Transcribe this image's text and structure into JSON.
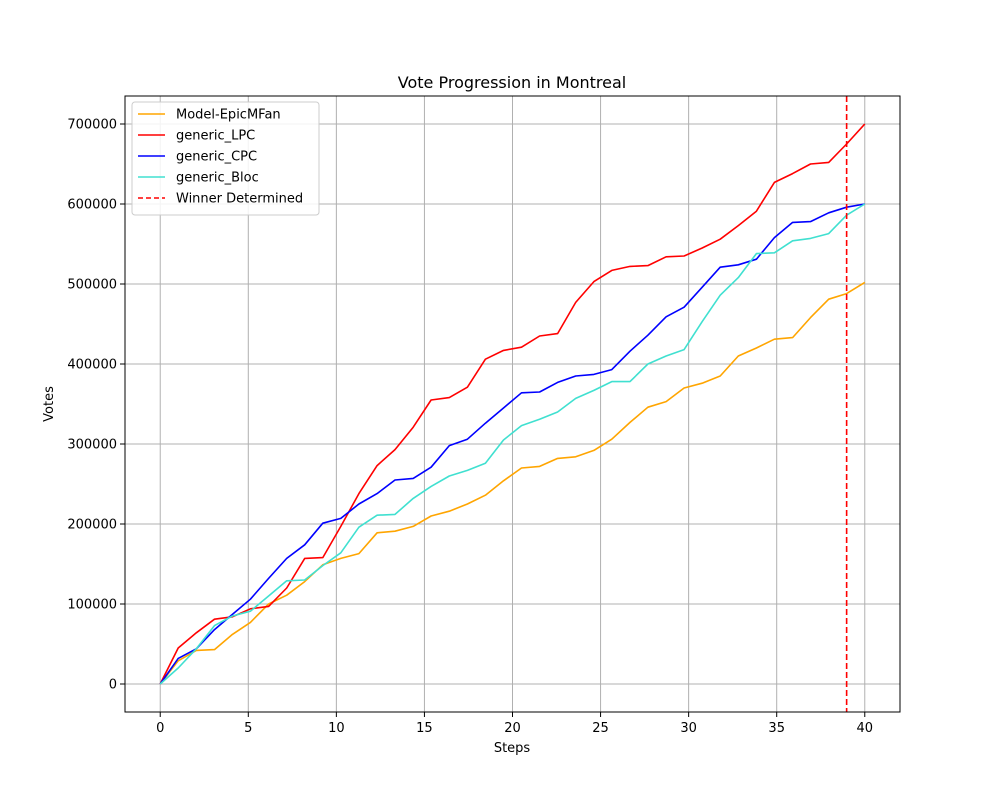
{
  "chart_data": {
    "type": "line",
    "title": "Vote Progression in Montreal",
    "xlabel": "Steps",
    "ylabel": "Votes",
    "xlim": [
      -2,
      42
    ],
    "ylim": [
      -35000,
      735000
    ],
    "xticks": [
      0,
      5,
      10,
      15,
      20,
      25,
      30,
      35,
      40
    ],
    "yticks": [
      0,
      100000,
      200000,
      300000,
      400000,
      500000,
      600000,
      700000
    ],
    "grid": true,
    "legend_position": "top-left",
    "x": [
      0,
      1.02,
      2.05,
      3.08,
      4.1,
      5.12,
      6.15,
      7.18,
      8.2,
      9.23,
      10.25,
      11.28,
      12.31,
      13.33,
      14.36,
      15.38,
      16.41,
      17.44,
      18.46,
      19.49,
      20.51,
      21.54,
      22.56,
      23.59,
      24.62,
      25.64,
      26.67,
      27.69,
      28.72,
      29.74,
      30.77,
      31.79,
      32.82,
      33.85,
      34.87,
      35.9,
      36.92,
      37.95,
      38.97,
      40
    ],
    "series": [
      {
        "name": "Model-EpicMFan",
        "color": "#ffa500",
        "values": [
          0,
          29000,
          42000,
          43000,
          62000,
          77000,
          100000,
          111000,
          128000,
          149000,
          157000,
          163000,
          189000,
          191000,
          197000,
          210000,
          216000,
          225000,
          236000,
          254000,
          270000,
          272000,
          282000,
          284000,
          292000,
          306000,
          327000,
          346000,
          353000,
          370000,
          376000,
          385000,
          410000,
          420000,
          431000,
          433000,
          458000,
          481000,
          488000,
          502000
        ]
      },
      {
        "name": "generic_LPC",
        "color": "#ff0000",
        "values": [
          0,
          45000,
          64000,
          81000,
          84000,
          94000,
          97000,
          120000,
          157000,
          158000,
          197000,
          238000,
          273000,
          293000,
          321000,
          355000,
          358000,
          371000,
          406000,
          417000,
          421000,
          435000,
          438000,
          477000,
          503000,
          517000,
          522000,
          523000,
          534000,
          535000,
          545000,
          556000,
          573000,
          591000,
          627000,
          638000,
          650000,
          652000,
          675000,
          700000
        ]
      },
      {
        "name": "generic_CPC",
        "color": "#0000ff",
        "values": [
          0,
          32000,
          44000,
          68000,
          87000,
          106000,
          132000,
          157000,
          174000,
          201000,
          207000,
          225000,
          238000,
          255000,
          257000,
          271000,
          298000,
          306000,
          326000,
          345000,
          364000,
          365000,
          377000,
          385000,
          387000,
          393000,
          416000,
          436000,
          459000,
          471000,
          496000,
          521000,
          524000,
          531000,
          558000,
          577000,
          578000,
          589000,
          596000,
          600000
        ]
      },
      {
        "name": "generic_Bloc",
        "color": "#40e0d0",
        "values": [
          0,
          20000,
          44000,
          73000,
          85000,
          91000,
          110000,
          129000,
          130000,
          148000,
          164000,
          196000,
          211000,
          212000,
          232000,
          247000,
          260000,
          267000,
          276000,
          305000,
          323000,
          331000,
          340000,
          357000,
          367000,
          378000,
          378000,
          400000,
          410000,
          418000,
          453000,
          486000,
          508000,
          538000,
          539000,
          554000,
          557000,
          563000,
          586000,
          600000
        ]
      }
    ],
    "annotations": [
      {
        "type": "vline",
        "x": 38.97,
        "color": "#ff0000",
        "style": "dashed",
        "label": "Winner Determined"
      }
    ]
  }
}
